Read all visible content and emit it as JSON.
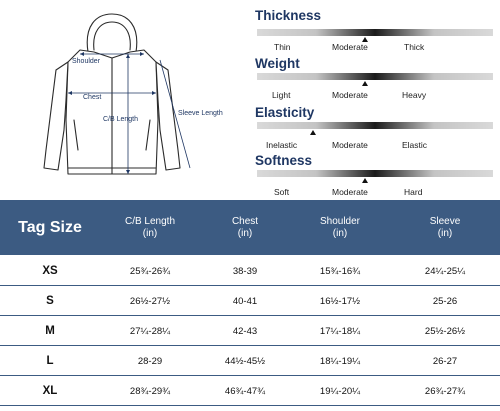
{
  "diagram": {
    "labels": {
      "shoulder": "Shoulder",
      "chest": "Chest",
      "cb_length": "C/B Length",
      "sleeve_length": "Sleeve Length"
    }
  },
  "attributes": [
    {
      "title": "Thickness",
      "left": "Thin",
      "middle": "Moderate",
      "right": "Thick",
      "selected": "Moderate"
    },
    {
      "title": "Weight",
      "left": "Light",
      "middle": "Moderate",
      "right": "Heavy",
      "selected": "Moderate"
    },
    {
      "title": "Elasticity",
      "left": "Inelastic",
      "middle": "Moderate",
      "right": "Elastic",
      "selected": "Inelastic-Moderate"
    },
    {
      "title": "Softness",
      "left": "Soft",
      "middle": "Moderate",
      "right": "Hard",
      "selected": "Moderate"
    }
  ],
  "table": {
    "header": {
      "tag_size": "Tag Size",
      "columns": [
        {
          "name": "C/B Length",
          "unit": "(in)"
        },
        {
          "name": "Chest",
          "unit": "(in)"
        },
        {
          "name": "Shoulder",
          "unit": "(in)"
        },
        {
          "name": "Sleeve",
          "unit": "(in)"
        }
      ]
    },
    "rows": [
      {
        "size": "XS",
        "values": [
          "25¾-26¾",
          "38-39",
          "15¾-16¾",
          "24¼-25¼"
        ]
      },
      {
        "size": "S",
        "values": [
          "26½-27½",
          "40-41",
          "16½-17½",
          "25-26"
        ]
      },
      {
        "size": "M",
        "values": [
          "27¼-28¼",
          "42-43",
          "17¼-18¼",
          "25½-26½"
        ]
      },
      {
        "size": "L",
        "values": [
          "28-29",
          "44½-45½",
          "18¼-19¼",
          "26-27"
        ]
      },
      {
        "size": "XL",
        "values": [
          "28¾-29¾",
          "46¾-47¾",
          "19¼-20¼",
          "26¾-27¾"
        ]
      }
    ],
    "colors": {
      "header_bg": "#3c5b82",
      "header_text": "#ffffff",
      "row_divider": "#3c5b82"
    }
  }
}
